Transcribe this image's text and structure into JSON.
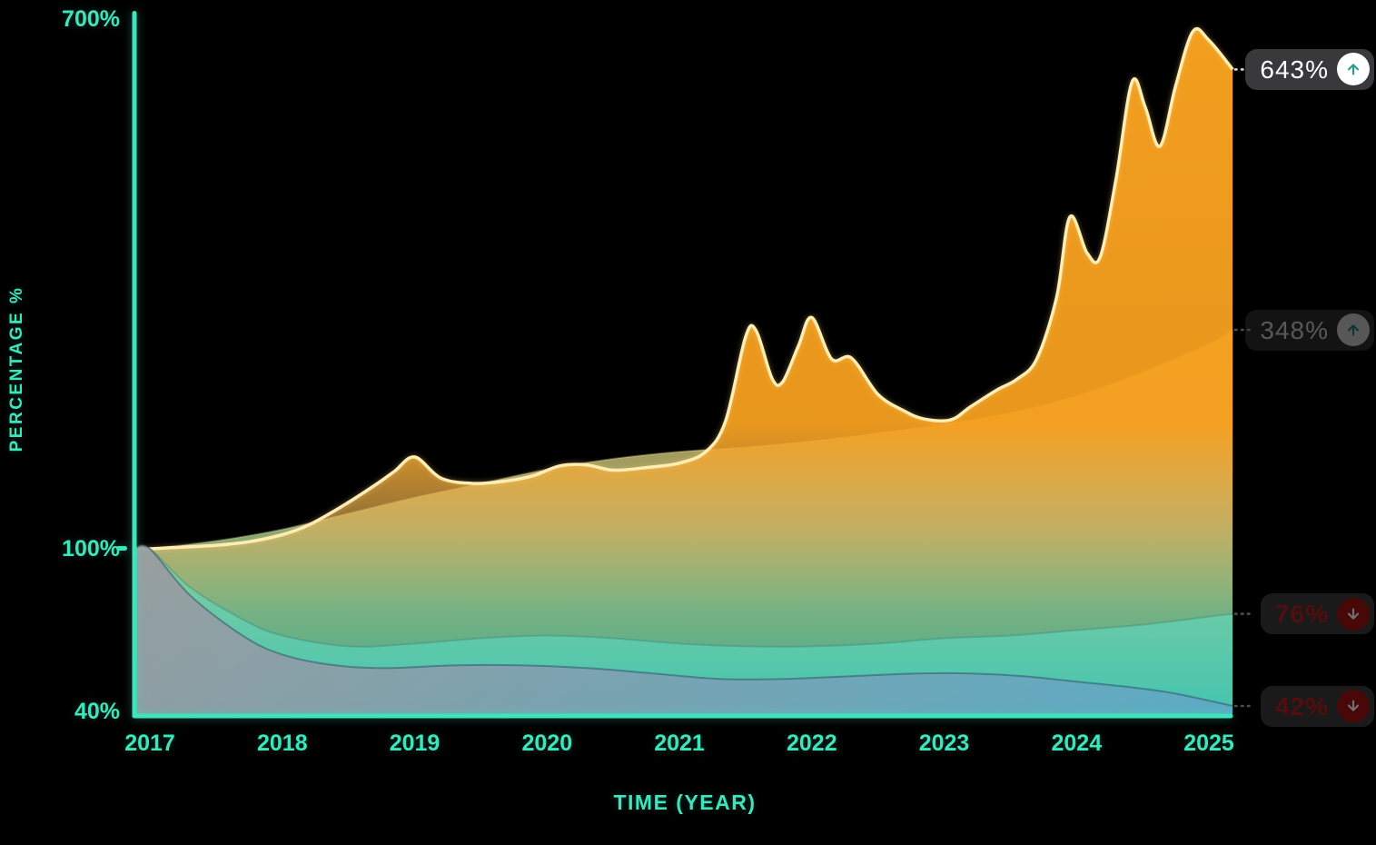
{
  "axes": {
    "y_axis_label": "PERCENTAGE %",
    "x_axis_label": "TIME (YEAR)",
    "y_ticks": [
      {
        "label": "700%",
        "value": 700
      },
      {
        "label": "100%",
        "value": 100
      },
      {
        "label": "40%",
        "value": 40
      }
    ],
    "x_ticks": [
      {
        "label": "2017",
        "year": 2017
      },
      {
        "label": "2018",
        "year": 2018
      },
      {
        "label": "2019",
        "year": 2019
      },
      {
        "label": "2020",
        "year": 2020
      },
      {
        "label": "2021",
        "year": 2021
      },
      {
        "label": "2022",
        "year": 2022
      },
      {
        "label": "2023",
        "year": 2023
      },
      {
        "label": "2024",
        "year": 2024
      },
      {
        "label": "2025",
        "year": 2025
      }
    ]
  },
  "badges": [
    {
      "label": "643%",
      "trend": "up",
      "state": "active"
    },
    {
      "label": "348%",
      "trend": "up",
      "state": "dimmed"
    },
    {
      "label": "76%",
      "trend": "down",
      "state": "dimmed"
    },
    {
      "label": "42%",
      "trend": "down",
      "state": "dimmed"
    }
  ],
  "colors": {
    "background": "#000000",
    "axis": "#3BE6BD",
    "label_text": "#3BE6BD",
    "orange_fill": "#F7A11F",
    "orange_stroke": "#FFEDB4",
    "tan_fill": "#E4AA42",
    "teal_fill": "#6FE5C2",
    "blue_fill": "#9B97A0",
    "badge_bg": "#39393B",
    "badge_active_text": "#FFFFFF",
    "badge_up_arrow": "#2E9C93",
    "badge_down_text": "#9E1A1A",
    "badge_down_circle": "#8A1111"
  },
  "chart_data": {
    "type": "area",
    "xlabel": "TIME (YEAR)",
    "ylabel": "PERCENTAGE %",
    "x_range": [
      2017,
      2025.2
    ],
    "y_tick_values": [
      700,
      100,
      40
    ],
    "grid": false,
    "legend": "end-of-line badges on right side",
    "y_scale_note": "non-linear: 100% mark sits in lower third of axis",
    "series": [
      {
        "name": "series-643",
        "end_label": "643%",
        "end_value": 643,
        "trend": "up",
        "stroke": "rgba(255,237,180,1)",
        "stroke_width": 3.5,
        "points": [
          [
            2017,
            100
          ],
          [
            2017.25,
            102
          ],
          [
            2017.5,
            104
          ],
          [
            2017.75,
            108
          ],
          [
            2018,
            116
          ],
          [
            2018.2,
            127
          ],
          [
            2018.45,
            148
          ],
          [
            2018.7,
            172
          ],
          [
            2018.85,
            188
          ],
          [
            2019,
            204
          ],
          [
            2019.2,
            180
          ],
          [
            2019.45,
            174
          ],
          [
            2019.7,
            177
          ],
          [
            2019.9,
            183
          ],
          [
            2020.1,
            194
          ],
          [
            2020.3,
            195
          ],
          [
            2020.5,
            189
          ],
          [
            2020.75,
            192
          ],
          [
            2021,
            197
          ],
          [
            2021.2,
            210
          ],
          [
            2021.35,
            245
          ],
          [
            2021.5,
            340
          ],
          [
            2021.58,
            347
          ],
          [
            2021.7,
            293
          ],
          [
            2021.78,
            289
          ],
          [
            2021.9,
            330
          ],
          [
            2022,
            362
          ],
          [
            2022.15,
            315
          ],
          [
            2022.3,
            316
          ],
          [
            2022.5,
            275
          ],
          [
            2022.7,
            256
          ],
          [
            2022.85,
            247
          ],
          [
            2023.05,
            246
          ],
          [
            2023.2,
            261
          ],
          [
            2023.4,
            280
          ],
          [
            2023.55,
            292
          ],
          [
            2023.7,
            315
          ],
          [
            2023.85,
            385
          ],
          [
            2023.95,
            476
          ],
          [
            2024.08,
            435
          ],
          [
            2024.18,
            431
          ],
          [
            2024.3,
            520
          ],
          [
            2024.42,
            629
          ],
          [
            2024.52,
            600
          ],
          [
            2024.63,
            556
          ],
          [
            2024.75,
            625
          ],
          [
            2024.88,
            686
          ],
          [
            2025,
            676
          ],
          [
            2025.18,
            643
          ]
        ]
      },
      {
        "name": "series-348",
        "end_label": "348%",
        "end_value": 348,
        "trend": "up",
        "stroke": "rgba(255,235,170,0.25)",
        "stroke_width": 2,
        "points": [
          [
            2017,
            100
          ],
          [
            2017.5,
            109
          ],
          [
            2018,
            122
          ],
          [
            2018.5,
            140
          ],
          [
            2019,
            158
          ],
          [
            2019.5,
            174
          ],
          [
            2020,
            190
          ],
          [
            2020.5,
            202
          ],
          [
            2021,
            210
          ],
          [
            2021.5,
            215
          ],
          [
            2022,
            222
          ],
          [
            2022.5,
            231
          ],
          [
            2023,
            241
          ],
          [
            2023.5,
            254
          ],
          [
            2024,
            273
          ],
          [
            2024.5,
            300
          ],
          [
            2025,
            332
          ],
          [
            2025.18,
            348
          ]
        ]
      },
      {
        "name": "series-76",
        "end_label": "76%",
        "end_value": 76,
        "trend": "down",
        "stroke": "rgba(55,130,120,0.35)",
        "stroke_width": 2,
        "points": [
          [
            2017,
            100
          ],
          [
            2017.3,
            86
          ],
          [
            2017.7,
            74
          ],
          [
            2018,
            68
          ],
          [
            2018.5,
            64
          ],
          [
            2019,
            65
          ],
          [
            2019.5,
            67
          ],
          [
            2020,
            68
          ],
          [
            2020.5,
            67
          ],
          [
            2021,
            65
          ],
          [
            2021.5,
            64
          ],
          [
            2022,
            64
          ],
          [
            2022.5,
            65
          ],
          [
            2023,
            67
          ],
          [
            2023.5,
            68
          ],
          [
            2024,
            70
          ],
          [
            2024.5,
            72
          ],
          [
            2025,
            75
          ],
          [
            2025.18,
            76
          ]
        ]
      },
      {
        "name": "series-42",
        "end_label": "42%",
        "end_value": 42,
        "trend": "down",
        "stroke": "rgba(45,85,105,0.55)",
        "stroke_width": 2,
        "points": [
          [
            2017,
            100
          ],
          [
            2017.3,
            83
          ],
          [
            2017.7,
            68
          ],
          [
            2018,
            61
          ],
          [
            2018.4,
            57
          ],
          [
            2018.8,
            56
          ],
          [
            2019.3,
            57
          ],
          [
            2019.8,
            57
          ],
          [
            2020.3,
            56
          ],
          [
            2020.8,
            54
          ],
          [
            2021.3,
            52
          ],
          [
            2021.8,
            52
          ],
          [
            2022.3,
            53
          ],
          [
            2022.8,
            54
          ],
          [
            2023.2,
            54
          ],
          [
            2023.6,
            53
          ],
          [
            2024,
            51
          ],
          [
            2024.4,
            49
          ],
          [
            2024.7,
            47
          ],
          [
            2025,
            44
          ],
          [
            2025.18,
            42
          ]
        ]
      }
    ]
  }
}
